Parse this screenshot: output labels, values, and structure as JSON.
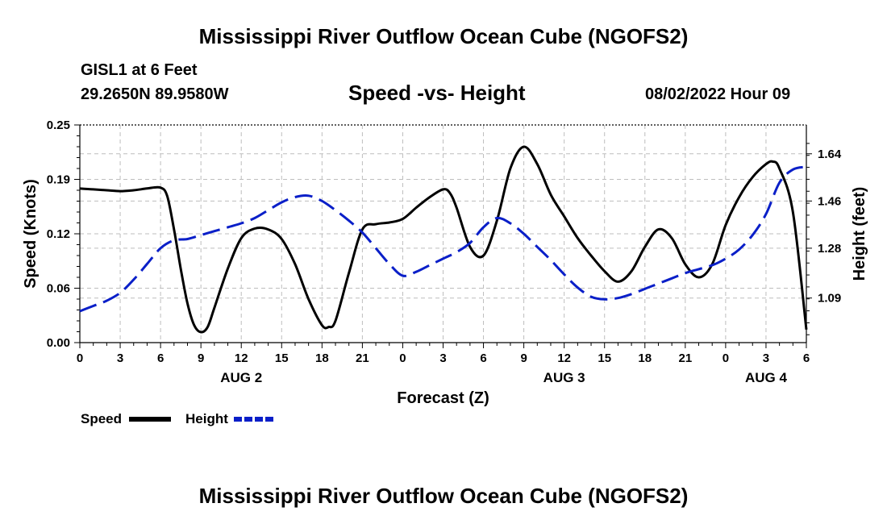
{
  "page": {
    "title_top": "Mississippi River Outflow Ocean Cube (NGOFS2)",
    "title_bottom": "Mississippi River Outflow Ocean Cube (NGOFS2)",
    "station": "GISL1 at 6 Feet",
    "coords": "29.2650N  89.9580W",
    "chart_title": "Speed -vs- Height",
    "datetime": "08/02/2022 Hour 09"
  },
  "colors": {
    "speed": "#000000",
    "height": "#0a1fc8",
    "grid": "#bdbdbd"
  },
  "chart_data": {
    "type": "line",
    "title": "Speed -vs- Height",
    "xlabel": "Forecast (Z)",
    "ylabel": "Speed (Knots)",
    "y2label": "Height (feet)",
    "xlim": [
      0,
      54
    ],
    "ylim": [
      0,
      0.25
    ],
    "y2lim": [
      0.92,
      1.75
    ],
    "x_ticks": [
      0,
      3,
      6,
      9,
      12,
      15,
      18,
      21,
      24,
      27,
      30,
      33,
      36,
      39,
      42,
      45,
      48,
      51,
      54
    ],
    "x_tick_labels": [
      "0",
      "3",
      "6",
      "9",
      "12",
      "15",
      "18",
      "21",
      "0",
      "3",
      "6",
      "9",
      "12",
      "15",
      "18",
      "21",
      "0",
      "3",
      "6"
    ],
    "date_labels": [
      {
        "x": 12,
        "label": "AUG 2"
      },
      {
        "x": 36,
        "label": "AUG 3"
      },
      {
        "x": 51,
        "label": "AUG 4"
      }
    ],
    "y_ticks": [
      0.0,
      0.0625,
      0.125,
      0.1875,
      0.25
    ],
    "y_tick_labels": [
      "0.00",
      "0.06",
      "0.12",
      "0.19",
      "0.25"
    ],
    "y2_ticks": [
      1.09,
      1.28,
      1.46,
      1.64
    ],
    "y2_tick_labels": [
      "1.09",
      "1.28",
      "1.46",
      "1.64"
    ],
    "grid": true,
    "legend_position": "bottom-left",
    "series": [
      {
        "name": "Speed",
        "axis": "left",
        "style": "solid",
        "x": [
          0,
          1,
          2,
          3,
          4,
          5,
          6,
          6.5,
          7,
          7.5,
          8,
          8.5,
          9,
          9.5,
          10,
          11,
          12,
          13,
          14,
          15,
          16,
          17,
          18,
          18.5,
          19,
          20,
          21,
          22,
          23,
          24,
          25,
          26,
          27,
          27.5,
          28,
          29,
          30,
          31,
          32,
          33,
          34,
          35,
          36,
          37,
          38,
          39,
          40,
          41,
          42,
          43,
          44,
          45,
          46,
          47,
          48,
          49,
          50,
          51,
          51.5,
          52,
          53,
          54
        ],
        "y": [
          0.177,
          0.176,
          0.175,
          0.174,
          0.175,
          0.177,
          0.178,
          0.168,
          0.13,
          0.085,
          0.045,
          0.02,
          0.012,
          0.018,
          0.04,
          0.085,
          0.12,
          0.131,
          0.13,
          0.119,
          0.09,
          0.05,
          0.02,
          0.018,
          0.025,
          0.08,
          0.13,
          0.136,
          0.138,
          0.142,
          0.155,
          0.167,
          0.176,
          0.172,
          0.155,
          0.11,
          0.1,
          0.14,
          0.2,
          0.225,
          0.205,
          0.17,
          0.145,
          0.12,
          0.1,
          0.082,
          0.07,
          0.082,
          0.11,
          0.13,
          0.12,
          0.09,
          0.075,
          0.09,
          0.135,
          0.167,
          0.19,
          0.205,
          0.208,
          0.2,
          0.15,
          0.015
        ]
      },
      {
        "name": "Height",
        "axis": "right",
        "style": "dashed",
        "x": [
          0,
          1,
          2,
          3,
          4,
          5,
          6,
          7,
          8,
          9,
          10,
          11,
          12,
          13,
          14,
          15,
          16,
          17,
          18,
          19,
          20,
          21,
          22,
          23,
          24,
          25,
          26,
          27,
          28,
          29,
          30,
          31,
          32,
          33,
          34,
          35,
          36,
          37,
          38,
          39,
          40,
          41,
          42,
          43,
          44,
          45,
          46,
          47,
          48,
          49,
          50,
          51,
          52,
          53,
          54
        ],
        "y": [
          1.04,
          1.06,
          1.08,
          1.11,
          1.16,
          1.22,
          1.28,
          1.31,
          1.315,
          1.33,
          1.345,
          1.36,
          1.375,
          1.395,
          1.425,
          1.455,
          1.475,
          1.48,
          1.46,
          1.425,
          1.385,
          1.34,
          1.28,
          1.22,
          1.175,
          1.19,
          1.215,
          1.24,
          1.265,
          1.3,
          1.36,
          1.395,
          1.375,
          1.335,
          1.285,
          1.235,
          1.18,
          1.13,
          1.095,
          1.085,
          1.09,
          1.105,
          1.125,
          1.145,
          1.165,
          1.185,
          1.2,
          1.215,
          1.24,
          1.275,
          1.33,
          1.41,
          1.53,
          1.58,
          1.59
        ]
      }
    ]
  },
  "legend": {
    "speed_label": "Speed",
    "height_label": "Height"
  }
}
